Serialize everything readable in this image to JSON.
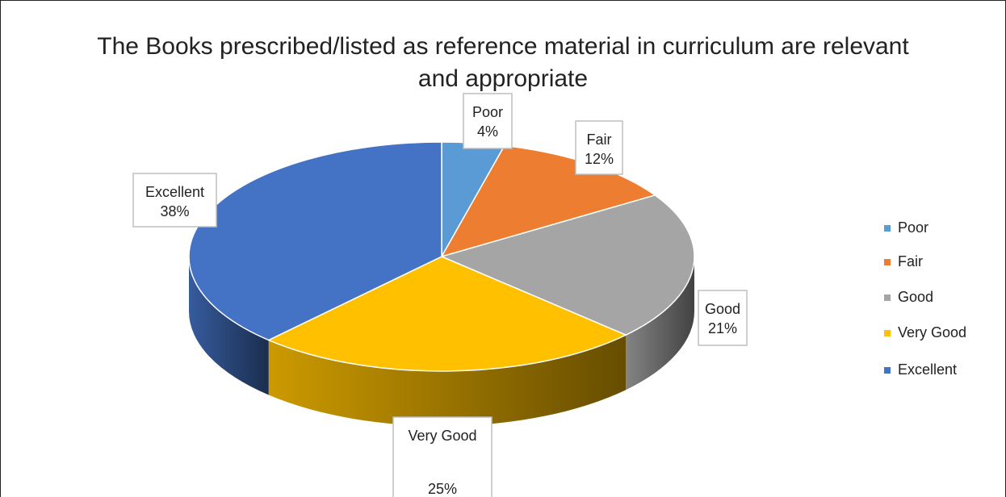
{
  "chart_data": {
    "type": "pie",
    "title": "The Books prescribed/listed as reference material in curriculum are relevant and appropriate",
    "categories": [
      "Poor",
      "Fair",
      "Good",
      "Very Good",
      "Excellent"
    ],
    "values": [
      4,
      12,
      21,
      25,
      38
    ],
    "value_labels": [
      "4%",
      "12%",
      "21%",
      "25%",
      "38%"
    ],
    "colors": [
      "#5b9bd5",
      "#ed7d31",
      "#a5a5a5",
      "#ffc000",
      "#4472c4"
    ],
    "legend": "right"
  }
}
